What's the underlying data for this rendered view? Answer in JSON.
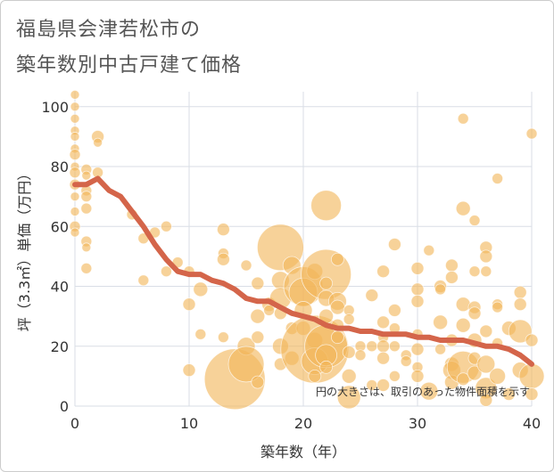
{
  "title_line1": "福島県会津若松市の",
  "title_line2": "築年数別中古戸建て価格",
  "note": "円の大きさは、取引のあった物件面積を示す",
  "colors": {
    "bubble": "#f2b65a",
    "line": "#d4654a",
    "grid": "#d9dee6",
    "background": "#ffffff"
  },
  "chart_data": {
    "type": "scatter",
    "xlabel": "築年数（年）",
    "ylabel": "坪（3.3㎡）単価（万円）",
    "xlim": [
      0,
      40
    ],
    "ylim": [
      0,
      105
    ],
    "xticks": [
      "0",
      "10",
      "20",
      "30",
      "40"
    ],
    "yticks": [
      "0",
      "20",
      "40",
      "60",
      "80",
      "100"
    ],
    "grid": true,
    "points": [
      {
        "x": 0,
        "y": 104,
        "s": 5
      },
      {
        "x": 0,
        "y": 100,
        "s": 5
      },
      {
        "x": 0,
        "y": 96,
        "s": 5
      },
      {
        "x": 0,
        "y": 92,
        "s": 5
      },
      {
        "x": 0,
        "y": 90,
        "s": 5
      },
      {
        "x": 0,
        "y": 86,
        "s": 5
      },
      {
        "x": 0,
        "y": 84,
        "s": 6
      },
      {
        "x": 0,
        "y": 80,
        "s": 5
      },
      {
        "x": 0,
        "y": 78,
        "s": 6
      },
      {
        "x": 0,
        "y": 74,
        "s": 6
      },
      {
        "x": 0,
        "y": 70,
        "s": 5
      },
      {
        "x": 0,
        "y": 65,
        "s": 5
      },
      {
        "x": 0,
        "y": 60,
        "s": 6
      },
      {
        "x": 0,
        "y": 58,
        "s": 5
      },
      {
        "x": 1,
        "y": 79,
        "s": 6
      },
      {
        "x": 1,
        "y": 77,
        "s": 5
      },
      {
        "x": 1,
        "y": 72,
        "s": 6
      },
      {
        "x": 1,
        "y": 70,
        "s": 6
      },
      {
        "x": 1,
        "y": 66,
        "s": 6
      },
      {
        "x": 1,
        "y": 55,
        "s": 6
      },
      {
        "x": 1,
        "y": 53,
        "s": 5
      },
      {
        "x": 1,
        "y": 46,
        "s": 6
      },
      {
        "x": 2,
        "y": 90,
        "s": 7
      },
      {
        "x": 2,
        "y": 88,
        "s": 5
      },
      {
        "x": 2,
        "y": 78,
        "s": 6
      },
      {
        "x": 5,
        "y": 64,
        "s": 6
      },
      {
        "x": 6,
        "y": 56,
        "s": 6
      },
      {
        "x": 6,
        "y": 42,
        "s": 6
      },
      {
        "x": 7,
        "y": 58,
        "s": 6
      },
      {
        "x": 8,
        "y": 60,
        "s": 6
      },
      {
        "x": 8,
        "y": 45,
        "s": 6
      },
      {
        "x": 9,
        "y": 48,
        "s": 6
      },
      {
        "x": 10,
        "y": 45,
        "s": 6
      },
      {
        "x": 10,
        "y": 34,
        "s": 7
      },
      {
        "x": 10,
        "y": 12,
        "s": 7
      },
      {
        "x": 11,
        "y": 39,
        "s": 8
      },
      {
        "x": 11,
        "y": 24,
        "s": 6
      },
      {
        "x": 13,
        "y": 59,
        "s": 7
      },
      {
        "x": 13,
        "y": 51,
        "s": 6
      },
      {
        "x": 13,
        "y": 49,
        "s": 7
      },
      {
        "x": 13,
        "y": 23,
        "s": 6
      },
      {
        "x": 14,
        "y": 9,
        "s": 34
      },
      {
        "x": 15,
        "y": 20,
        "s": 10
      },
      {
        "x": 15,
        "y": 14,
        "s": 20
      },
      {
        "x": 15,
        "y": 47,
        "s": 6
      },
      {
        "x": 16,
        "y": 41,
        "s": 7
      },
      {
        "x": 16,
        "y": 30,
        "s": 8
      },
      {
        "x": 16,
        "y": 23,
        "s": 7
      },
      {
        "x": 16,
        "y": 8,
        "s": 7
      },
      {
        "x": 17,
        "y": 34,
        "s": 8
      },
      {
        "x": 17,
        "y": 32,
        "s": 6
      },
      {
        "x": 18,
        "y": 53,
        "s": 26
      },
      {
        "x": 18,
        "y": 42,
        "s": 10
      },
      {
        "x": 18,
        "y": 36,
        "s": 12
      },
      {
        "x": 18,
        "y": 31,
        "s": 7
      },
      {
        "x": 18,
        "y": 20,
        "s": 9
      },
      {
        "x": 18,
        "y": 14,
        "s": 7
      },
      {
        "x": 19,
        "y": 47,
        "s": 10
      },
      {
        "x": 19,
        "y": 26,
        "s": 7
      },
      {
        "x": 19,
        "y": 16,
        "s": 8
      },
      {
        "x": 20,
        "y": 40,
        "s": 22
      },
      {
        "x": 20,
        "y": 38,
        "s": 16
      },
      {
        "x": 20,
        "y": 32,
        "s": 10
      },
      {
        "x": 20,
        "y": 26,
        "s": 8
      },
      {
        "x": 21,
        "y": 45,
        "s": 9
      },
      {
        "x": 21,
        "y": 22,
        "s": 9
      },
      {
        "x": 21,
        "y": 19,
        "s": 38
      },
      {
        "x": 21,
        "y": 15,
        "s": 15
      },
      {
        "x": 21,
        "y": 10,
        "s": 7
      },
      {
        "x": 22,
        "y": 67,
        "s": 17
      },
      {
        "x": 22,
        "y": 44,
        "s": 28
      },
      {
        "x": 22,
        "y": 41,
        "s": 7
      },
      {
        "x": 22,
        "y": 36,
        "s": 9
      },
      {
        "x": 22,
        "y": 30,
        "s": 8
      },
      {
        "x": 22,
        "y": 20,
        "s": 24
      },
      {
        "x": 22,
        "y": 17,
        "s": 12
      },
      {
        "x": 22,
        "y": 13,
        "s": 7
      },
      {
        "x": 23,
        "y": 49,
        "s": 7
      },
      {
        "x": 23,
        "y": 35,
        "s": 10
      },
      {
        "x": 23,
        "y": 33,
        "s": 8
      },
      {
        "x": 23,
        "y": 27,
        "s": 7
      },
      {
        "x": 23,
        "y": 23,
        "s": 7
      },
      {
        "x": 24,
        "y": 32,
        "s": 6
      },
      {
        "x": 24,
        "y": 29,
        "s": 6
      },
      {
        "x": 24,
        "y": 18,
        "s": 7
      },
      {
        "x": 24,
        "y": 10,
        "s": 8
      },
      {
        "x": 24,
        "y": 3,
        "s": 13
      },
      {
        "x": 25,
        "y": 20,
        "s": 6
      },
      {
        "x": 25,
        "y": 17,
        "s": 6
      },
      {
        "x": 26,
        "y": 37,
        "s": 7
      },
      {
        "x": 26,
        "y": 20,
        "s": 6
      },
      {
        "x": 26,
        "y": 7,
        "s": 6
      },
      {
        "x": 27,
        "y": 45,
        "s": 7
      },
      {
        "x": 27,
        "y": 28,
        "s": 7
      },
      {
        "x": 27,
        "y": 23,
        "s": 6
      },
      {
        "x": 27,
        "y": 20,
        "s": 7
      },
      {
        "x": 27,
        "y": 16,
        "s": 7
      },
      {
        "x": 27,
        "y": 7,
        "s": 7
      },
      {
        "x": 28,
        "y": 54,
        "s": 7
      },
      {
        "x": 28,
        "y": 32,
        "s": 7
      },
      {
        "x": 28,
        "y": 26,
        "s": 6
      },
      {
        "x": 28,
        "y": 20,
        "s": 6
      },
      {
        "x": 28,
        "y": 10,
        "s": 6
      },
      {
        "x": 29,
        "y": 17,
        "s": 6
      },
      {
        "x": 29,
        "y": 15,
        "s": 6
      },
      {
        "x": 30,
        "y": 46,
        "s": 7
      },
      {
        "x": 30,
        "y": 39,
        "s": 7
      },
      {
        "x": 30,
        "y": 35,
        "s": 7
      },
      {
        "x": 30,
        "y": 24,
        "s": 6
      },
      {
        "x": 30,
        "y": 19,
        "s": 7
      },
      {
        "x": 30,
        "y": 13,
        "s": 6
      },
      {
        "x": 30,
        "y": 10,
        "s": 7
      },
      {
        "x": 31,
        "y": 52,
        "s": 6
      },
      {
        "x": 31,
        "y": 5,
        "s": 10
      },
      {
        "x": 32,
        "y": 40,
        "s": 7
      },
      {
        "x": 32,
        "y": 39,
        "s": 6
      },
      {
        "x": 32,
        "y": 28,
        "s": 8
      },
      {
        "x": 32,
        "y": 19,
        "s": 6
      },
      {
        "x": 33,
        "y": 47,
        "s": 7
      },
      {
        "x": 33,
        "y": 43,
        "s": 7
      },
      {
        "x": 33,
        "y": 22,
        "s": 7
      },
      {
        "x": 33,
        "y": 14,
        "s": 8
      },
      {
        "x": 33,
        "y": 12,
        "s": 10
      },
      {
        "x": 33,
        "y": 8,
        "s": 8
      },
      {
        "x": 34,
        "y": 96,
        "s": 6
      },
      {
        "x": 34,
        "y": 66,
        "s": 8
      },
      {
        "x": 34,
        "y": 34,
        "s": 8
      },
      {
        "x": 34,
        "y": 27,
        "s": 8
      },
      {
        "x": 34,
        "y": 13,
        "s": 18
      },
      {
        "x": 34,
        "y": 9,
        "s": 7
      },
      {
        "x": 35,
        "y": 62,
        "s": 6
      },
      {
        "x": 35,
        "y": 45,
        "s": 6
      },
      {
        "x": 35,
        "y": 33,
        "s": 7
      },
      {
        "x": 35,
        "y": 31,
        "s": 7
      },
      {
        "x": 35,
        "y": 22,
        "s": 8
      },
      {
        "x": 35,
        "y": 16,
        "s": 7
      },
      {
        "x": 35,
        "y": 11,
        "s": 8
      },
      {
        "x": 36,
        "y": 53,
        "s": 7
      },
      {
        "x": 36,
        "y": 50,
        "s": 7
      },
      {
        "x": 36,
        "y": 45,
        "s": 6
      },
      {
        "x": 36,
        "y": 25,
        "s": 7
      },
      {
        "x": 36,
        "y": 14,
        "s": 10
      },
      {
        "x": 36,
        "y": 6,
        "s": 12
      },
      {
        "x": 36,
        "y": 2,
        "s": 7
      },
      {
        "x": 37,
        "y": 76,
        "s": 6
      },
      {
        "x": 37,
        "y": 34,
        "s": 6
      },
      {
        "x": 37,
        "y": 33,
        "s": 6
      },
      {
        "x": 37,
        "y": 21,
        "s": 6
      },
      {
        "x": 37,
        "y": 10,
        "s": 9
      },
      {
        "x": 38,
        "y": 26,
        "s": 8
      },
      {
        "x": 38,
        "y": 4,
        "s": 7
      },
      {
        "x": 39,
        "y": 38,
        "s": 7
      },
      {
        "x": 39,
        "y": 34,
        "s": 7
      },
      {
        "x": 39,
        "y": 25,
        "s": 13
      },
      {
        "x": 39,
        "y": 12,
        "s": 9
      },
      {
        "x": 40,
        "y": 91,
        "s": 6
      },
      {
        "x": 40,
        "y": 22,
        "s": 7
      },
      {
        "x": 40,
        "y": 10,
        "s": 14
      },
      {
        "x": 40,
        "y": 4,
        "s": 7
      }
    ],
    "trend": [
      {
        "x": 0,
        "y": 74
      },
      {
        "x": 1,
        "y": 74
      },
      {
        "x": 2,
        "y": 76
      },
      {
        "x": 3,
        "y": 72
      },
      {
        "x": 4,
        "y": 70
      },
      {
        "x": 5,
        "y": 65
      },
      {
        "x": 6,
        "y": 60
      },
      {
        "x": 7,
        "y": 54
      },
      {
        "x": 8,
        "y": 49
      },
      {
        "x": 9,
        "y": 45
      },
      {
        "x": 10,
        "y": 44
      },
      {
        "x": 11,
        "y": 44
      },
      {
        "x": 12,
        "y": 42
      },
      {
        "x": 13,
        "y": 41
      },
      {
        "x": 14,
        "y": 39
      },
      {
        "x": 15,
        "y": 36
      },
      {
        "x": 16,
        "y": 35
      },
      {
        "x": 17,
        "y": 35
      },
      {
        "x": 18,
        "y": 33
      },
      {
        "x": 19,
        "y": 31
      },
      {
        "x": 20,
        "y": 30
      },
      {
        "x": 21,
        "y": 29
      },
      {
        "x": 22,
        "y": 27
      },
      {
        "x": 23,
        "y": 26
      },
      {
        "x": 24,
        "y": 26
      },
      {
        "x": 25,
        "y": 25
      },
      {
        "x": 26,
        "y": 25
      },
      {
        "x": 27,
        "y": 24
      },
      {
        "x": 28,
        "y": 24
      },
      {
        "x": 29,
        "y": 24
      },
      {
        "x": 30,
        "y": 23
      },
      {
        "x": 31,
        "y": 23
      },
      {
        "x": 32,
        "y": 22
      },
      {
        "x": 33,
        "y": 22
      },
      {
        "x": 34,
        "y": 22
      },
      {
        "x": 35,
        "y": 21
      },
      {
        "x": 36,
        "y": 20
      },
      {
        "x": 37,
        "y": 20
      },
      {
        "x": 38,
        "y": 19
      },
      {
        "x": 39,
        "y": 17
      },
      {
        "x": 40,
        "y": 14
      }
    ]
  }
}
